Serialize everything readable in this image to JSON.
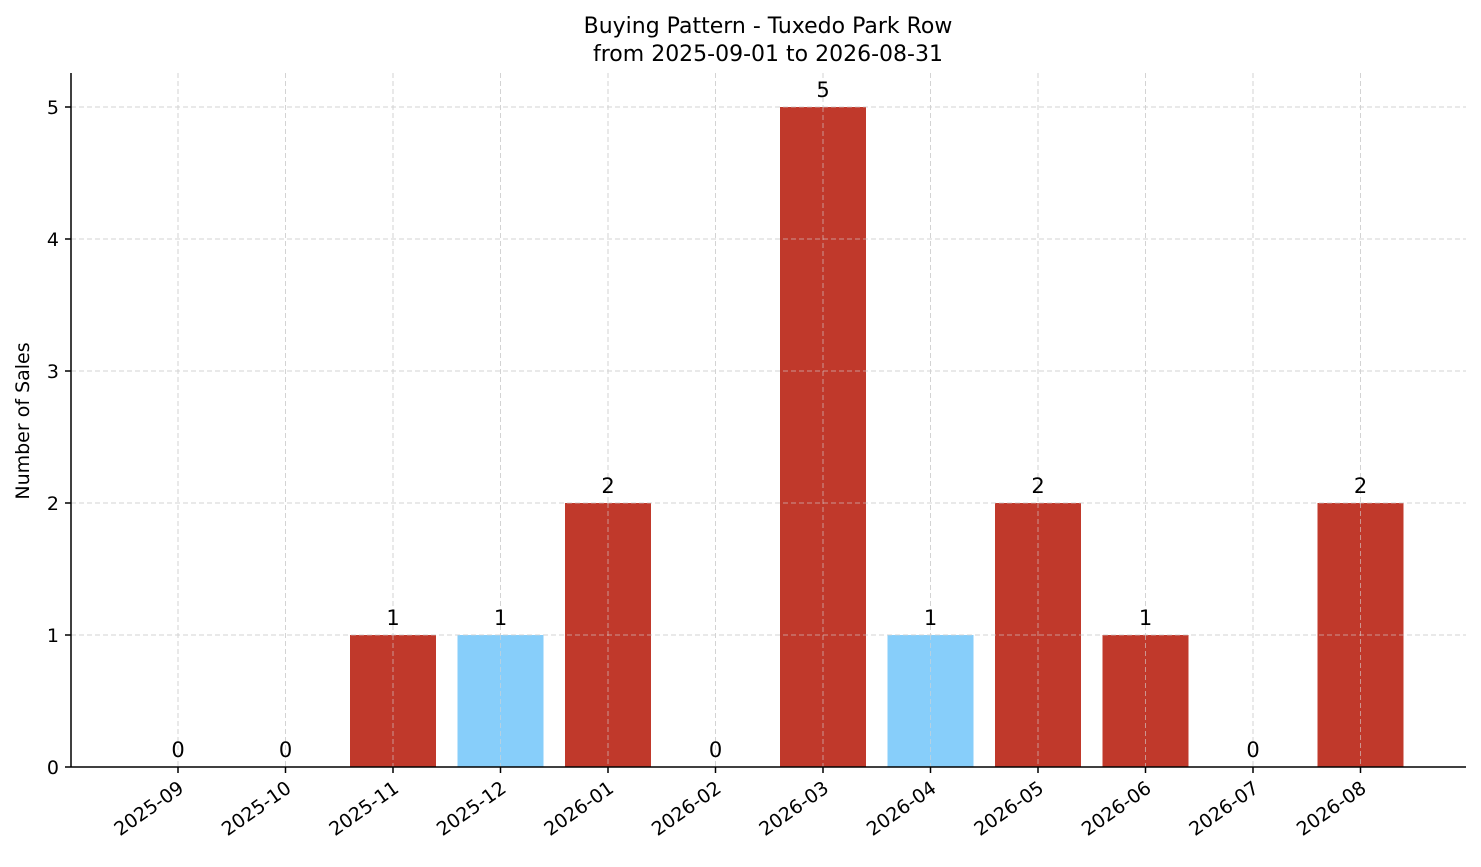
{
  "chart_data": {
    "type": "bar",
    "title": "Buying Pattern - Tuxedo Park Row",
    "subtitle": "from 2025-09-01 to 2026-08-31",
    "xlabel": "",
    "ylabel": "Number of Sales",
    "categories": [
      "2025-09",
      "2025-10",
      "2025-11",
      "2025-12",
      "2026-01",
      "2026-02",
      "2026-03",
      "2026-04",
      "2026-05",
      "2026-06",
      "2026-07",
      "2026-08"
    ],
    "values": [
      0,
      0,
      1,
      1,
      2,
      0,
      5,
      1,
      2,
      1,
      0,
      2
    ],
    "bar_colors": [
      "#c0392b",
      "#c0392b",
      "#c0392b",
      "#87cefa",
      "#c0392b",
      "#c0392b",
      "#c0392b",
      "#87cefa",
      "#c0392b",
      "#c0392b",
      "#c0392b",
      "#c0392b"
    ],
    "data_labels": [
      "0",
      "0",
      "1",
      "1",
      "2",
      "0",
      "5",
      "1",
      "2",
      "1",
      "0",
      "2"
    ],
    "y_ticks": [
      0,
      1,
      2,
      3,
      4,
      5
    ],
    "ylim": [
      0,
      5.25
    ],
    "grid": true,
    "legend": "none"
  }
}
